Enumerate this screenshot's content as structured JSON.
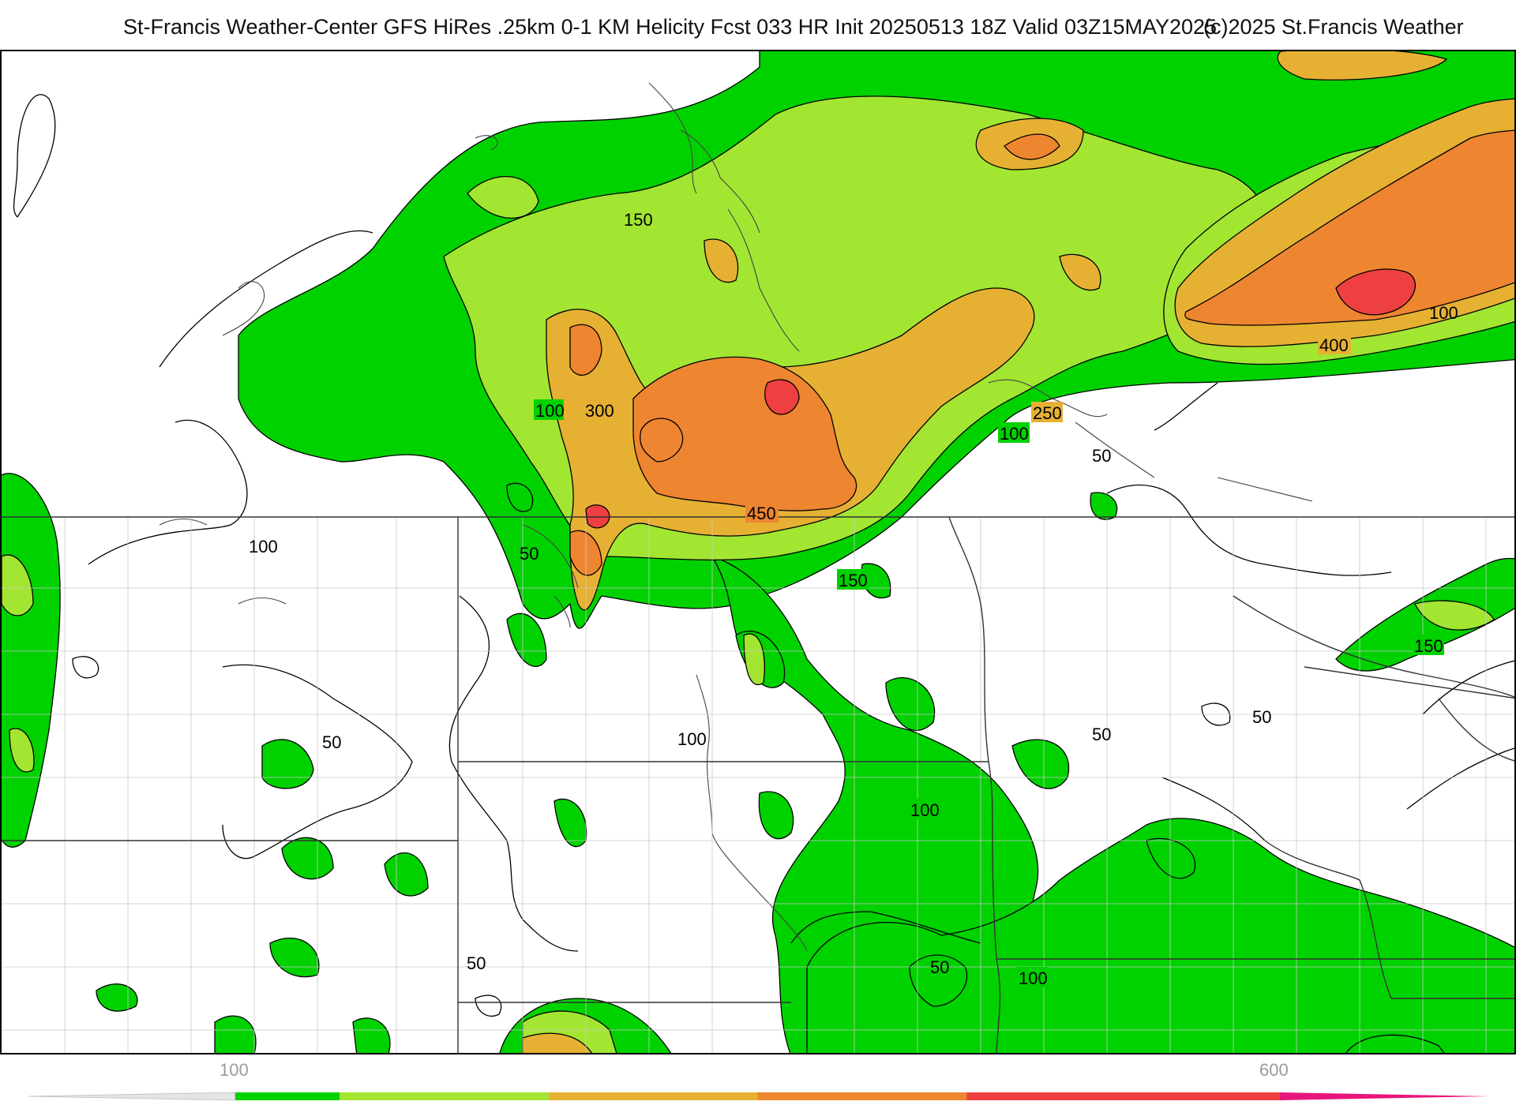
{
  "header": {
    "title": "St-Francis Weather-Center GFS HiRes .25km 0-1 KM Helicity Fcst 033 HR Init 20250513 18Z  Valid 03Z15MAY2025",
    "copyright": "(c)2025 St.Francis Weather"
  },
  "colorbar": {
    "labels": [
      {
        "text": "100",
        "value": 100
      },
      {
        "text": "600",
        "value": 600
      }
    ],
    "bands": [
      {
        "from": 100,
        "to": 150,
        "color": "#00d200"
      },
      {
        "from": 150,
        "to": 250,
        "color": "#a2e632"
      },
      {
        "from": 250,
        "to": 350,
        "color": "#e6b132"
      },
      {
        "from": 350,
        "to": 450,
        "color": "#ee8530"
      },
      {
        "from": 450,
        "to": 600,
        "color": "#ee4040"
      },
      {
        "from": 600,
        "to": 700,
        "color": "#e8157a"
      }
    ]
  },
  "map": {
    "contour_labels": [
      {
        "text": "150"
      },
      {
        "text": "100"
      },
      {
        "text": "300"
      },
      {
        "text": "250"
      },
      {
        "text": "400"
      },
      {
        "text": "100"
      },
      {
        "text": "100"
      },
      {
        "text": "50"
      },
      {
        "text": "450"
      },
      {
        "text": "150"
      },
      {
        "text": "100"
      },
      {
        "text": "50"
      },
      {
        "text": "150"
      },
      {
        "text": "50"
      },
      {
        "text": "50"
      },
      {
        "text": "50"
      },
      {
        "text": "100"
      },
      {
        "text": "100"
      },
      {
        "text": "50"
      },
      {
        "text": "100"
      },
      {
        "text": "50"
      }
    ]
  }
}
